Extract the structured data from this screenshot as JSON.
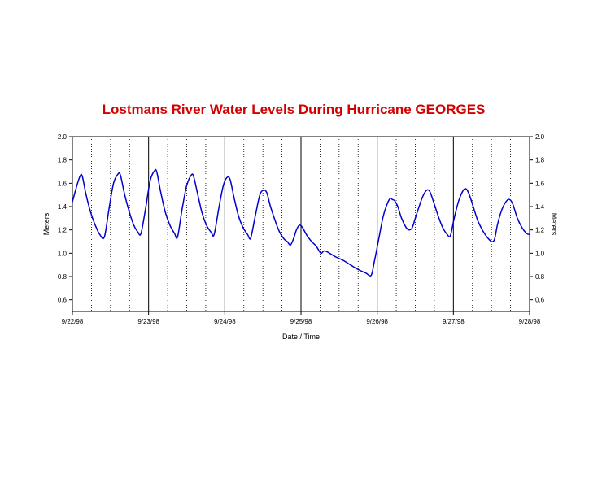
{
  "chart_data": {
    "type": "line",
    "title": "Lostmans River Water Levels During Hurricane GEORGES",
    "xlabel": "Date / Time",
    "ylabel": "Meters",
    "ylabel_right": "Meters",
    "ylim": [
      0.5,
      2.0
    ],
    "yticks": [
      "0.6",
      "0.8",
      "1.0",
      "1.2",
      "1.4",
      "1.6",
      "1.8",
      "2.0"
    ],
    "xticks": [
      "9/22/98",
      "9/23/98",
      "9/24/98",
      "9/25/98",
      "9/26/98",
      "9/27/98",
      "9/28/98"
    ],
    "x_unit": "days since 9/22/98",
    "grid": "vertical: solid at each day, dotted at 6-hour intervals",
    "line_color": "#0000cc",
    "series": [
      {
        "name": "",
        "points": [
          [
            0.0,
            1.44
          ],
          [
            0.05,
            1.56
          ],
          [
            0.1,
            1.66
          ],
          [
            0.13,
            1.66
          ],
          [
            0.18,
            1.5
          ],
          [
            0.24,
            1.35
          ],
          [
            0.3,
            1.24
          ],
          [
            0.36,
            1.16
          ],
          [
            0.42,
            1.14
          ],
          [
            0.48,
            1.38
          ],
          [
            0.54,
            1.6
          ],
          [
            0.6,
            1.68
          ],
          [
            0.63,
            1.67
          ],
          [
            0.68,
            1.52
          ],
          [
            0.74,
            1.37
          ],
          [
            0.8,
            1.25
          ],
          [
            0.86,
            1.18
          ],
          [
            0.9,
            1.17
          ],
          [
            0.96,
            1.38
          ],
          [
            1.02,
            1.62
          ],
          [
            1.08,
            1.71
          ],
          [
            1.11,
            1.69
          ],
          [
            1.16,
            1.52
          ],
          [
            1.22,
            1.35
          ],
          [
            1.28,
            1.24
          ],
          [
            1.34,
            1.17
          ],
          [
            1.38,
            1.14
          ],
          [
            1.44,
            1.38
          ],
          [
            1.5,
            1.58
          ],
          [
            1.56,
            1.67
          ],
          [
            1.59,
            1.66
          ],
          [
            1.64,
            1.52
          ],
          [
            1.7,
            1.35
          ],
          [
            1.76,
            1.24
          ],
          [
            1.82,
            1.18
          ],
          [
            1.86,
            1.16
          ],
          [
            1.92,
            1.38
          ],
          [
            1.98,
            1.58
          ],
          [
            2.03,
            1.65
          ],
          [
            2.07,
            1.63
          ],
          [
            2.12,
            1.48
          ],
          [
            2.18,
            1.32
          ],
          [
            2.24,
            1.22
          ],
          [
            2.3,
            1.16
          ],
          [
            2.34,
            1.13
          ],
          [
            2.4,
            1.32
          ],
          [
            2.46,
            1.5
          ],
          [
            2.51,
            1.54
          ],
          [
            2.55,
            1.52
          ],
          [
            2.6,
            1.4
          ],
          [
            2.66,
            1.28
          ],
          [
            2.72,
            1.18
          ],
          [
            2.78,
            1.12
          ],
          [
            2.82,
            1.1
          ],
          [
            2.86,
            1.07
          ],
          [
            2.9,
            1.12
          ],
          [
            2.94,
            1.2
          ],
          [
            2.98,
            1.24
          ],
          [
            3.02,
            1.22
          ],
          [
            3.08,
            1.15
          ],
          [
            3.14,
            1.1
          ],
          [
            3.2,
            1.06
          ],
          [
            3.26,
            1.0
          ],
          [
            3.3,
            1.02
          ],
          [
            3.35,
            1.01
          ],
          [
            3.45,
            0.97
          ],
          [
            3.55,
            0.94
          ],
          [
            3.65,
            0.9
          ],
          [
            3.75,
            0.86
          ],
          [
            3.85,
            0.83
          ],
          [
            3.92,
            0.81
          ],
          [
            3.96,
            0.92
          ],
          [
            4.02,
            1.12
          ],
          [
            4.08,
            1.32
          ],
          [
            4.13,
            1.42
          ],
          [
            4.17,
            1.47
          ],
          [
            4.2,
            1.46
          ],
          [
            4.23,
            1.45
          ],
          [
            4.27,
            1.4
          ],
          [
            4.32,
            1.3
          ],
          [
            4.38,
            1.22
          ],
          [
            4.42,
            1.2
          ],
          [
            4.46,
            1.22
          ],
          [
            4.5,
            1.3
          ],
          [
            4.55,
            1.4
          ],
          [
            4.6,
            1.49
          ],
          [
            4.65,
            1.54
          ],
          [
            4.69,
            1.53
          ],
          [
            4.74,
            1.44
          ],
          [
            4.8,
            1.32
          ],
          [
            4.86,
            1.22
          ],
          [
            4.92,
            1.16
          ],
          [
            4.96,
            1.15
          ],
          [
            5.01,
            1.3
          ],
          [
            5.07,
            1.45
          ],
          [
            5.13,
            1.54
          ],
          [
            5.17,
            1.55
          ],
          [
            5.21,
            1.5
          ],
          [
            5.26,
            1.4
          ],
          [
            5.32,
            1.28
          ],
          [
            5.38,
            1.2
          ],
          [
            5.44,
            1.14
          ],
          [
            5.5,
            1.1
          ],
          [
            5.54,
            1.12
          ],
          [
            5.58,
            1.25
          ],
          [
            5.64,
            1.38
          ],
          [
            5.7,
            1.45
          ],
          [
            5.74,
            1.46
          ],
          [
            5.78,
            1.42
          ],
          [
            5.84,
            1.3
          ],
          [
            5.9,
            1.22
          ],
          [
            5.96,
            1.17
          ],
          [
            6.0,
            1.16
          ]
        ]
      }
    ]
  }
}
